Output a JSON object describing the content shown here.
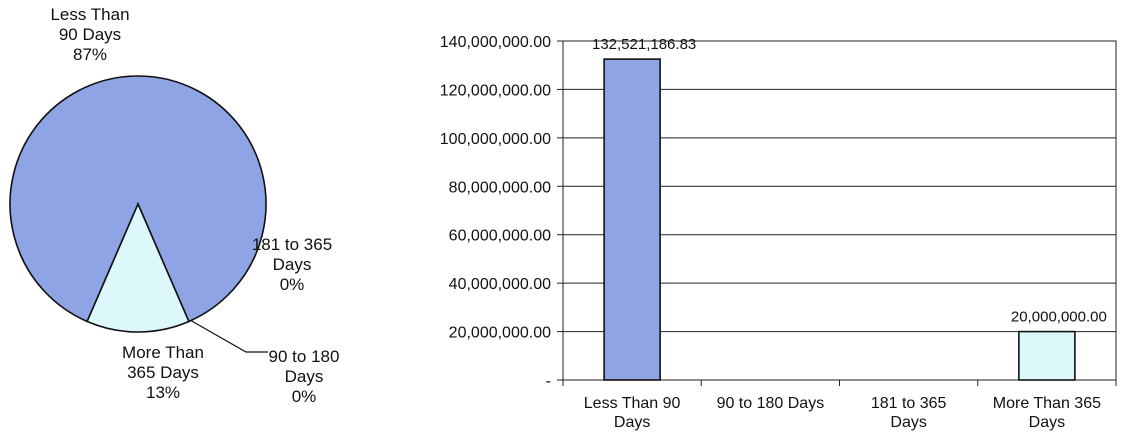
{
  "chart_data": [
    {
      "type": "pie",
      "slices": [
        {
          "label_lines": [
            "Less Than",
            "90 Days"
          ],
          "pct_label": "87%",
          "value": 87,
          "color": "#8ea4e4"
        },
        {
          "label_lines": [
            "90 to 180",
            "Days"
          ],
          "pct_label": "0%",
          "value": 0,
          "color": "#c8d4f4"
        },
        {
          "label_lines": [
            "181 to 365",
            "Days"
          ],
          "pct_label": "0%",
          "value": 0,
          "color": "#c8d4f4"
        },
        {
          "label_lines": [
            "More Than",
            "365 Days"
          ],
          "pct_label": "13%",
          "value": 13,
          "color": "#dcf8fa"
        }
      ]
    },
    {
      "type": "bar",
      "categories": [
        [
          "Less Than 90",
          "Days"
        ],
        [
          "90 to 180 Days"
        ],
        [
          "181 to 365",
          "Days"
        ],
        [
          "More Than 365",
          "Days"
        ]
      ],
      "values": [
        132521186.83,
        0,
        0,
        20000000
      ],
      "data_labels": [
        "132,521,186.83",
        "",
        "",
        "20,000,000.00"
      ],
      "colors": [
        "#8ea4e4",
        "#8ea4e4",
        "#8ea4e4",
        "#dcf8fa"
      ],
      "ylim": [
        0,
        140000000
      ],
      "yticks": [
        0,
        20000000,
        40000000,
        60000000,
        80000000,
        100000000,
        120000000,
        140000000
      ],
      "ytick_labels": [
        "-",
        "20,000,000.00",
        "40,000,000.00",
        "60,000,000.00",
        "80,000,000.00",
        "100,000,000.00",
        "120,000,000.00",
        "140,000,000.00"
      ],
      "grid": true
    }
  ]
}
